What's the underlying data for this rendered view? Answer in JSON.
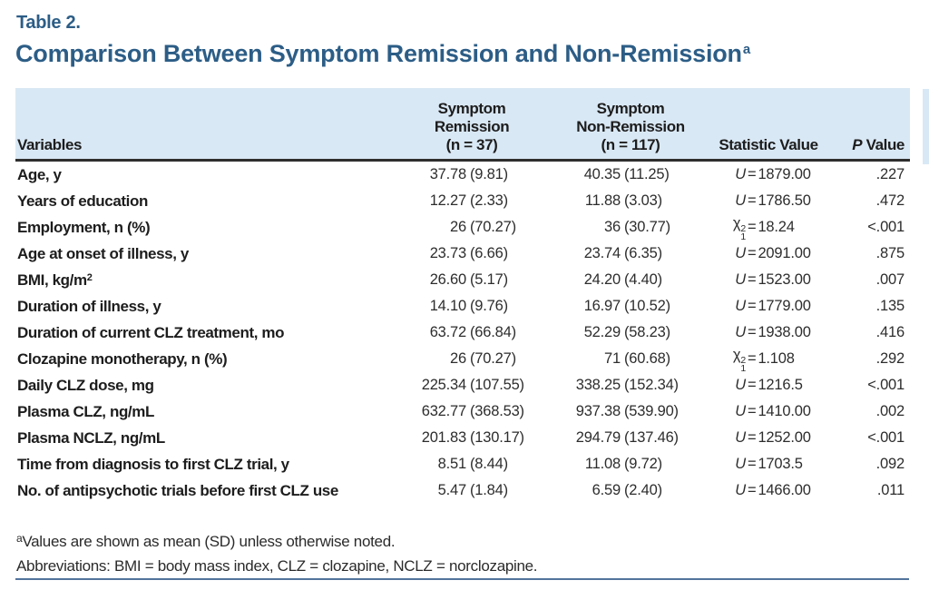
{
  "header": {
    "table_label": "Table 2.",
    "title": "Comparison Between Symptom Remission and Non-Remission",
    "title_sup": "a"
  },
  "accent_colors": {
    "title_blue": "#2c5d86",
    "header_band_blue": "#d9e8f5",
    "bottom_rule_blue": "#52749c"
  },
  "table": {
    "equals_sign": "=",
    "columns": [
      {
        "key": "variables",
        "lines": [
          "Variables"
        ]
      },
      {
        "key": "remission",
        "lines": [
          "Symptom",
          "Remission",
          "(n = 37)"
        ]
      },
      {
        "key": "non_remission",
        "lines": [
          "Symptom",
          "Non-Remission",
          "(n = 117)"
        ]
      },
      {
        "key": "statistic",
        "lines": [
          "Statistic Value"
        ]
      },
      {
        "key": "p",
        "italic_part": "P",
        "rest": " Value"
      }
    ],
    "rows": [
      {
        "label": "Age, y",
        "remission": {
          "num": "37.78",
          "sd": "(9.81)"
        },
        "non_remission": {
          "num": "40.35",
          "sd": "(11.25)"
        },
        "statistic": {
          "sym": "U",
          "italic": true,
          "value": "1879.00"
        },
        "p": ".227"
      },
      {
        "label": "Years of education",
        "remission": {
          "num": "12.27",
          "sd": "(2.33)"
        },
        "non_remission": {
          "num": "11.88",
          "sd": "(3.03)"
        },
        "statistic": {
          "sym": "U",
          "italic": true,
          "value": "1786.50"
        },
        "p": ".472"
      },
      {
        "label": "Employment, n (%)",
        "remission": {
          "num": "26",
          "sd": "(70.27)"
        },
        "non_remission": {
          "num": "36",
          "sd": "(30.77)"
        },
        "statistic": {
          "sym": "χ",
          "italic": false,
          "sup": "2",
          "sub": "1",
          "value": "18.24"
        },
        "p": "<.001"
      },
      {
        "label": "Age at onset of illness, y",
        "remission": {
          "num": "23.73",
          "sd": "(6.66)"
        },
        "non_remission": {
          "num": "23.74",
          "sd": "(6.35)"
        },
        "statistic": {
          "sym": "U",
          "italic": true,
          "value": "2091.00"
        },
        "p": ".875"
      },
      {
        "label": "BMI, kg/m",
        "label_sup": "2",
        "remission": {
          "num": "26.60",
          "sd": "(5.17)"
        },
        "non_remission": {
          "num": "24.20",
          "sd": "(4.40)"
        },
        "statistic": {
          "sym": "U",
          "italic": true,
          "value": "1523.00"
        },
        "p": ".007"
      },
      {
        "label": "Duration of illness, y",
        "remission": {
          "num": "14.10",
          "sd": "(9.76)"
        },
        "non_remission": {
          "num": "16.97",
          "sd": "(10.52)"
        },
        "statistic": {
          "sym": "U",
          "italic": true,
          "value": "1779.00"
        },
        "p": ".135"
      },
      {
        "label": "Duration of current CLZ treatment, mo",
        "remission": {
          "num": "63.72",
          "sd": "(66.84)"
        },
        "non_remission": {
          "num": "52.29",
          "sd": "(58.23)"
        },
        "statistic": {
          "sym": "U",
          "italic": true,
          "value": "1938.00"
        },
        "p": ".416"
      },
      {
        "label": "Clozapine monotherapy, n (%)",
        "remission": {
          "num": "26",
          "sd": "(70.27)"
        },
        "non_remission": {
          "num": "71",
          "sd": "(60.68)"
        },
        "statistic": {
          "sym": "χ",
          "italic": false,
          "sup": "2",
          "sub": "1",
          "value": "1.108"
        },
        "p": ".292"
      },
      {
        "label": "Daily CLZ dose, mg",
        "remission": {
          "num": "225.34",
          "sd": "(107.55)"
        },
        "non_remission": {
          "num": "338.25",
          "sd": "(152.34)"
        },
        "statistic": {
          "sym": "U",
          "italic": true,
          "value": "1216.5"
        },
        "p": "<.001"
      },
      {
        "label": "Plasma CLZ, ng/mL",
        "remission": {
          "num": "632.77",
          "sd": "(368.53)"
        },
        "non_remission": {
          "num": "937.38",
          "sd": "(539.90)"
        },
        "statistic": {
          "sym": "U",
          "italic": true,
          "value": "1410.00"
        },
        "p": ".002"
      },
      {
        "label": "Plasma NCLZ, ng/mL",
        "remission": {
          "num": "201.83",
          "sd": "(130.17)"
        },
        "non_remission": {
          "num": "294.79",
          "sd": "(137.46)"
        },
        "statistic": {
          "sym": "U",
          "italic": true,
          "value": "1252.00"
        },
        "p": "<.001"
      },
      {
        "label": "Time from diagnosis to first CLZ trial, y",
        "remission": {
          "num": "8.51",
          "sd": "(8.44)"
        },
        "non_remission": {
          "num": "11.08",
          "sd": "(9.72)"
        },
        "statistic": {
          "sym": "U",
          "italic": true,
          "value": "1703.5"
        },
        "p": ".092"
      },
      {
        "label": "No. of antipsychotic trials before first CLZ use",
        "remission": {
          "num": "5.47",
          "sd": "(1.84)"
        },
        "non_remission": {
          "num": "6.59",
          "sd": "(2.40)"
        },
        "statistic": {
          "sym": "U",
          "italic": true,
          "value": "1466.00"
        },
        "p": ".011"
      }
    ]
  },
  "footnotes": {
    "note_a_sup": "a",
    "note_a": "Values are shown as mean (SD) unless otherwise noted.",
    "abbreviations": "Abbreviations: BMI = body mass index, CLZ = clozapine, NCLZ = norclozapine."
  }
}
